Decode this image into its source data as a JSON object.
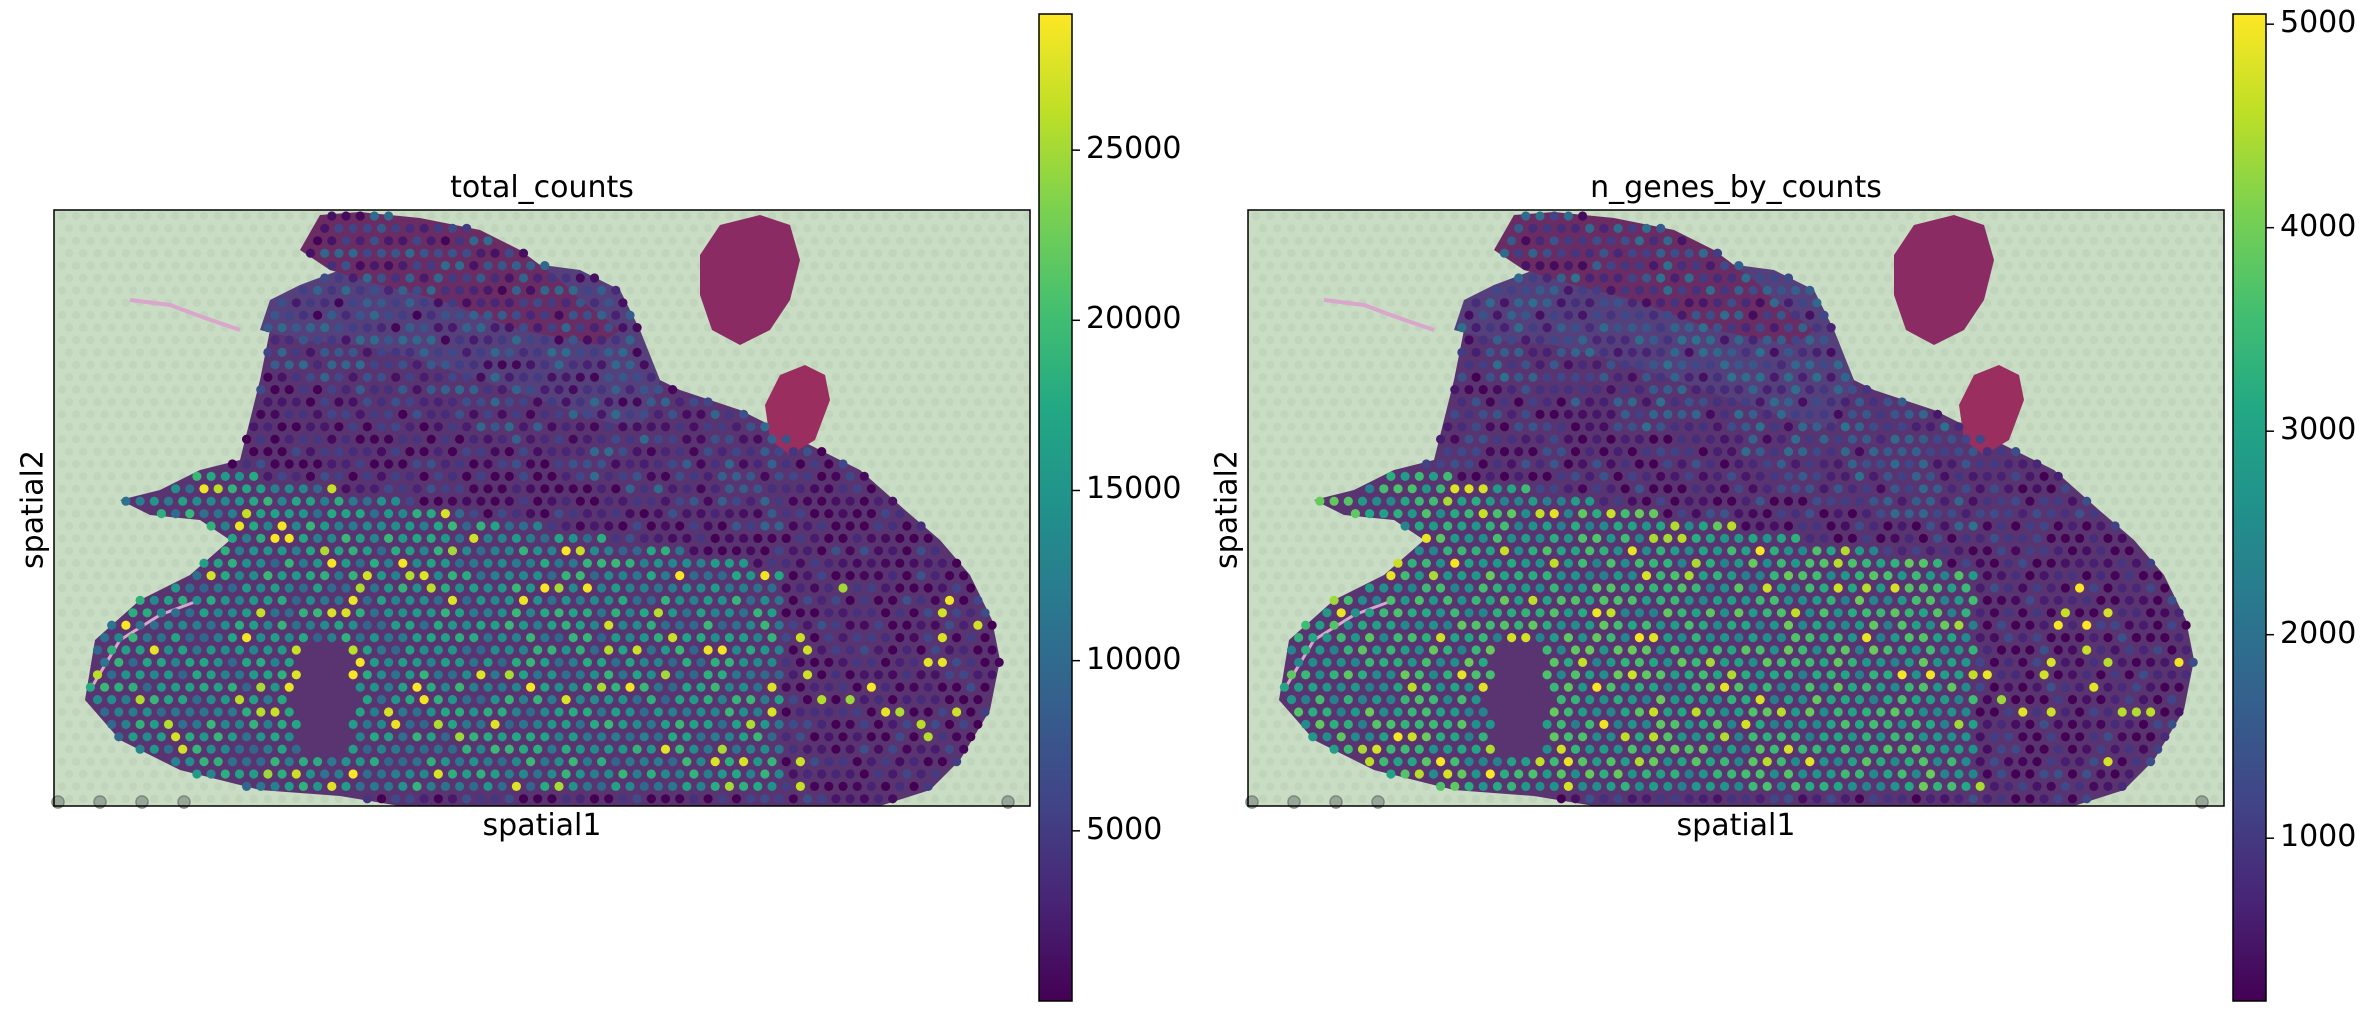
{
  "chart_data": [
    {
      "type": "scatter",
      "subtype": "spatial",
      "title": "total_counts",
      "xlabel": "spatial1",
      "ylabel": "spatial2",
      "colormap": "viridis",
      "colorbar": {
        "min": 0,
        "max": 29000,
        "ticks": [
          5000,
          10000,
          15000,
          20000,
          25000
        ]
      },
      "grid": false,
      "legend": "colorbar-right"
    },
    {
      "type": "scatter",
      "subtype": "spatial",
      "title": "n_genes_by_counts",
      "xlabel": "spatial1",
      "ylabel": "spatial2",
      "colormap": "viridis",
      "colorbar": {
        "min": 200,
        "max": 5050,
        "ticks": [
          1000,
          2000,
          3000,
          4000,
          5000
        ]
      },
      "grid": false,
      "legend": "colorbar-right"
    }
  ]
}
